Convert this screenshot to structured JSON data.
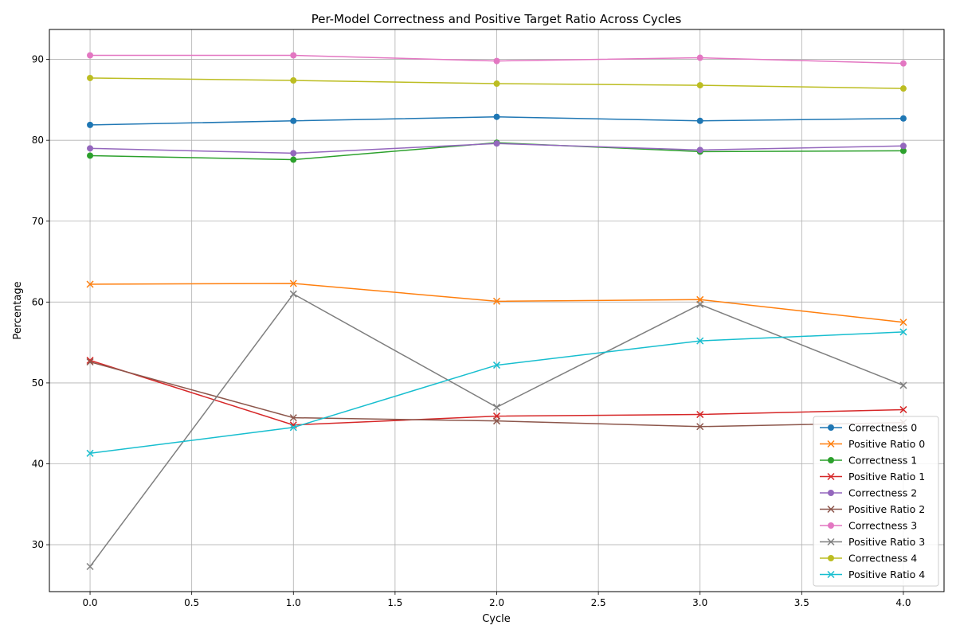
{
  "chart_data": {
    "type": "line",
    "title": "Per-Model Correctness and Positive Target Ratio Across Cycles",
    "xlabel": "Cycle",
    "ylabel": "Percentage",
    "xlim": [
      -0.2,
      4.2
    ],
    "ylim": [
      24.2,
      93.7
    ],
    "xticks": [
      "0.0",
      "0.5",
      "1.0",
      "1.5",
      "2.0",
      "2.5",
      "3.0",
      "3.5",
      "4.0"
    ],
    "yticks": [
      "30",
      "40",
      "50",
      "60",
      "70",
      "80",
      "90"
    ],
    "grid": true,
    "legend_position": "lower-right",
    "x": [
      0,
      1,
      2,
      3,
      4
    ],
    "series": [
      {
        "name": "Correctness 0",
        "color": "#1f77b4",
        "marker": "circle",
        "values": [
          81.9,
          82.4,
          82.9,
          82.4,
          82.7
        ]
      },
      {
        "name": "Positive Ratio 0",
        "color": "#ff7f0e",
        "marker": "x",
        "values": [
          62.2,
          62.3,
          60.1,
          60.3,
          57.5
        ]
      },
      {
        "name": "Correctness 1",
        "color": "#2ca02c",
        "marker": "circle",
        "values": [
          78.1,
          77.6,
          79.7,
          78.6,
          78.7
        ]
      },
      {
        "name": "Positive Ratio 1",
        "color": "#d62728",
        "marker": "x",
        "values": [
          52.8,
          44.8,
          45.9,
          46.1,
          46.7
        ]
      },
      {
        "name": "Correctness 2",
        "color": "#9467bd",
        "marker": "circle",
        "values": [
          79.0,
          78.4,
          79.6,
          78.8,
          79.3
        ]
      },
      {
        "name": "Positive Ratio 2",
        "color": "#8c564b",
        "marker": "x",
        "values": [
          52.6,
          45.7,
          45.3,
          44.6,
          45.1
        ]
      },
      {
        "name": "Correctness 3",
        "color": "#e377c2",
        "marker": "circle",
        "values": [
          90.5,
          90.5,
          89.8,
          90.2,
          89.5
        ]
      },
      {
        "name": "Positive Ratio 3",
        "color": "#7f7f7f",
        "marker": "x",
        "values": [
          27.3,
          61.0,
          47.0,
          59.7,
          49.7
        ]
      },
      {
        "name": "Correctness 4",
        "color": "#bcbd22",
        "marker": "circle",
        "values": [
          87.7,
          87.4,
          87.0,
          86.8,
          86.4
        ]
      },
      {
        "name": "Positive Ratio 4",
        "color": "#17becf",
        "marker": "x",
        "values": [
          41.3,
          44.5,
          52.2,
          55.2,
          56.3
        ]
      }
    ]
  }
}
